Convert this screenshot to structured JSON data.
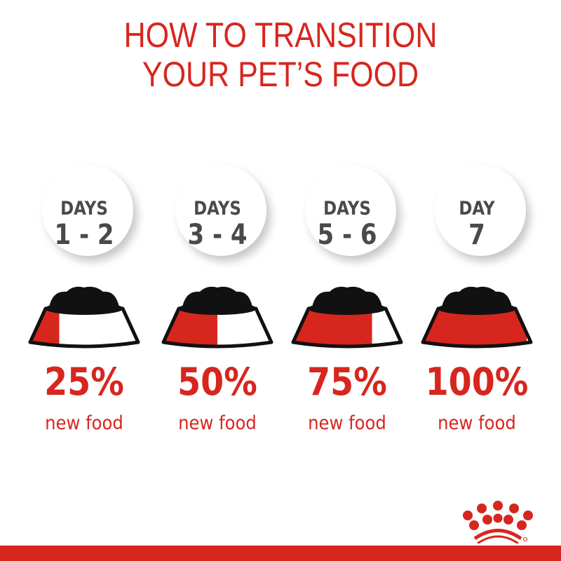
{
  "title": {
    "line1": "HOW TO TRANSITION",
    "line2": "YOUR PET’S FOOD"
  },
  "steps": [
    {
      "days_label": "DAYS",
      "range": "1 - 2",
      "percent": "25%",
      "caption": "new food",
      "new_food_fraction": 0.25
    },
    {
      "days_label": "DAYS",
      "range": "3 - 4",
      "percent": "50%",
      "caption": "new food",
      "new_food_fraction": 0.5
    },
    {
      "days_label": "DAYS",
      "range": "5 - 6",
      "percent": "75%",
      "caption": "new food",
      "new_food_fraction": 0.75
    },
    {
      "days_label": "DAY",
      "range": "7",
      "percent": "100%",
      "caption": "new food",
      "new_food_fraction": 1.0
    }
  ],
  "logo": {
    "icon": "crown-icon",
    "text": "®"
  },
  "colors": {
    "brand_red": "#d7261e",
    "text_gray": "#4a4a4a",
    "bowl_black": "#111111"
  }
}
